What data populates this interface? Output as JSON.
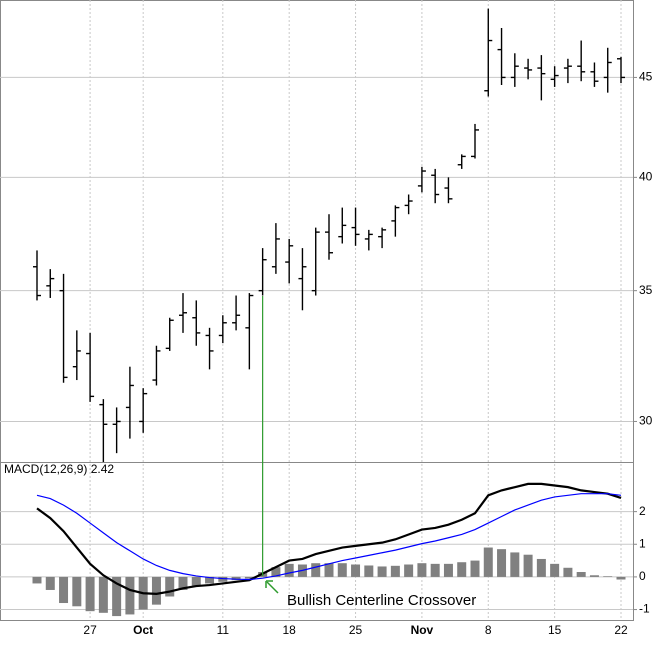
{
  "chart_data": [
    {
      "type": "ohlc",
      "log": true,
      "color": "#000000",
      "grid": true,
      "categories": [
        null,
        null,
        null,
        null,
        "27",
        null,
        null,
        null,
        "Oct",
        null,
        null,
        null,
        null,
        null,
        "11",
        null,
        null,
        null,
        null,
        "18",
        null,
        null,
        null,
        null,
        "25",
        null,
        null,
        null,
        null,
        "Nov",
        null,
        null,
        null,
        null,
        "8",
        null,
        null,
        null,
        null,
        "15",
        null,
        null,
        null,
        null,
        "22"
      ],
      "open": [
        36.0,
        35.2,
        35.0,
        32.0,
        32.5,
        30.6,
        29.9,
        30.5,
        30.0,
        31.5,
        32.7,
        34.0,
        33.9,
        33.2,
        33.2,
        33.7,
        33.5,
        35.0,
        36.0,
        36.2,
        35.5,
        35.0,
        37.5,
        37.3,
        37.7,
        37.2,
        37.3,
        38.0,
        38.7,
        39.6,
        40.1,
        39.5,
        40.6,
        41.0,
        44.3,
        46.5,
        45.0,
        45.5,
        45.5,
        44.9,
        45.5,
        45.6,
        45.3,
        45.0,
        46.0
      ],
      "high": [
        36.7,
        35.9,
        35.7,
        33.4,
        33.3,
        30.8,
        30.5,
        32.0,
        31.2,
        32.8,
        33.9,
        34.9,
        34.6,
        33.5,
        34.0,
        34.8,
        34.9,
        36.8,
        37.9,
        37.2,
        36.8,
        37.7,
        38.3,
        38.6,
        38.6,
        37.6,
        37.7,
        38.7,
        39.2,
        40.5,
        40.4,
        40.0,
        41.1,
        42.6,
        48.8,
        47.7,
        46.3,
        46.0,
        46.2,
        45.6,
        46.0,
        47.0,
        45.8,
        46.6,
        46.1
      ],
      "low": [
        34.6,
        34.7,
        31.4,
        31.5,
        30.7,
        28.6,
        28.9,
        29.4,
        29.6,
        31.3,
        32.6,
        33.3,
        32.8,
        31.9,
        32.9,
        33.4,
        31.9,
        34.8,
        35.7,
        35.3,
        34.2,
        34.8,
        36.3,
        37.0,
        36.9,
        36.7,
        36.8,
        37.3,
        38.3,
        39.3,
        38.8,
        38.8,
        40.4,
        40.9,
        44.0,
        44.6,
        44.5,
        44.9,
        43.8,
        44.5,
        44.7,
        44.8,
        44.5,
        44.2,
        44.7
      ],
      "close": [
        34.8,
        35.5,
        31.6,
        32.6,
        30.9,
        29.9,
        30.0,
        31.3,
        31.0,
        32.6,
        33.8,
        34.1,
        33.3,
        32.6,
        33.7,
        34.0,
        34.8,
        36.3,
        37.2,
        36.9,
        36.0,
        37.5,
        36.6,
        37.8,
        37.4,
        37.4,
        37.6,
        38.6,
        38.9,
        40.3,
        39.2,
        39.0,
        41.0,
        42.3,
        47.0,
        45.0,
        45.6,
        45.4,
        45.2,
        45.1,
        45.6,
        45.3,
        44.8,
        45.8,
        45.0
      ],
      "ylim": [
        28.6,
        49.3
      ],
      "yticks": [
        30,
        35,
        40,
        45
      ]
    },
    {
      "type": "line",
      "title": "MACD(12,26,9) 2.42",
      "grid": true,
      "annotation": "Bullish Centerline Crossover",
      "annotation_color": "#2e9b2e",
      "series": [
        {
          "color": "#000000",
          "values": [
            2.1,
            1.8,
            1.4,
            0.9,
            0.4,
            0.05,
            -0.2,
            -0.4,
            -0.5,
            -0.52,
            -0.45,
            -0.35,
            -0.28,
            -0.25,
            -0.2,
            -0.15,
            -0.1,
            0.1,
            0.3,
            0.5,
            0.55,
            0.7,
            0.8,
            0.9,
            0.95,
            1.0,
            1.05,
            1.15,
            1.3,
            1.45,
            1.5,
            1.6,
            1.75,
            1.95,
            2.5,
            2.65,
            2.75,
            2.85,
            2.85,
            2.8,
            2.75,
            2.65,
            2.6,
            2.55,
            2.42
          ]
        },
        {
          "color": "#0000ff",
          "values": [
            2.5,
            2.4,
            2.2,
            1.95,
            1.65,
            1.35,
            1.05,
            0.8,
            0.55,
            0.35,
            0.2,
            0.1,
            0.03,
            -0.02,
            -0.05,
            -0.07,
            -0.08,
            -0.04,
            0.03,
            0.12,
            0.2,
            0.3,
            0.4,
            0.5,
            0.58,
            0.66,
            0.74,
            0.82,
            0.92,
            1.02,
            1.1,
            1.2,
            1.3,
            1.45,
            1.65,
            1.85,
            2.05,
            2.2,
            2.35,
            2.45,
            2.5,
            2.55,
            2.55,
            2.55,
            2.5
          ]
        },
        {
          "type": "bar",
          "color": "#808080",
          "values": [
            -0.2,
            -0.4,
            -0.8,
            -0.9,
            -1.05,
            -1.1,
            -1.2,
            -1.15,
            -1.0,
            -0.85,
            -0.6,
            -0.4,
            -0.27,
            -0.2,
            -0.15,
            -0.1,
            -0.05,
            0.15,
            0.3,
            0.4,
            0.38,
            0.42,
            0.42,
            0.42,
            0.38,
            0.35,
            0.32,
            0.34,
            0.38,
            0.42,
            0.4,
            0.4,
            0.45,
            0.5,
            0.9,
            0.85,
            0.75,
            0.68,
            0.55,
            0.4,
            0.28,
            0.15,
            0.05,
            0.02,
            -0.08
          ]
        }
      ],
      "ylim": [
        -1.32,
        3.52
      ],
      "yticks": [
        -1,
        0,
        1,
        2
      ]
    }
  ]
}
